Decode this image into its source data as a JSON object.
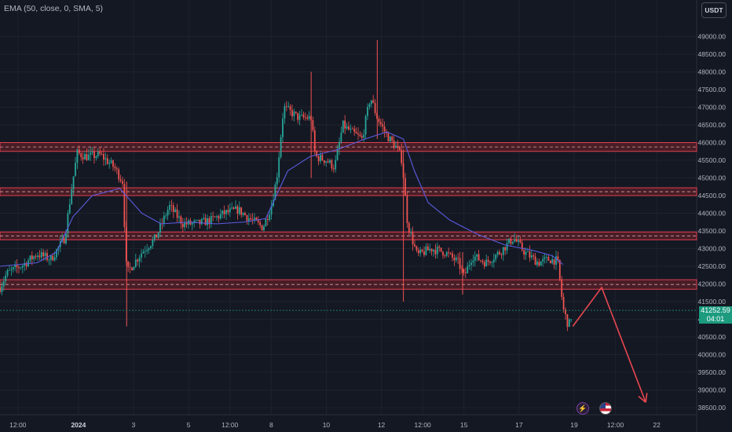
{
  "indicator_label": "EMA (50, close, 0, SMA, 5)",
  "currency": "USDT",
  "current_price": "41252.59",
  "countdown": "04:01",
  "colors": {
    "background": "#141823",
    "grid": "#1e222d",
    "up": "#26a69a",
    "down": "#ef5350",
    "ema": "#5b5ce0",
    "zone_fill": "#5a1f28",
    "zone_border": "#e04050",
    "arrow": "#e8474f",
    "badge": "#1c9b7f"
  },
  "icons": [
    "flash-icon",
    "us-flag-icon"
  ],
  "chart_data": {
    "type": "candlestick",
    "symbol_quote": "USDT",
    "indicator": "EMA (50, close, 0, SMA, 5)",
    "ylim": [
      38300,
      49500
    ],
    "y_ticks": [
      38500,
      39000,
      39500,
      40000,
      40500,
      41000,
      41500,
      42000,
      42500,
      43000,
      43500,
      44000,
      44500,
      45000,
      45500,
      46000,
      46500,
      47000,
      47500,
      48000,
      48500,
      49000
    ],
    "x_ticks": [
      {
        "label": "12:00",
        "pos": -2.2,
        "bold": false
      },
      {
        "label": "2024",
        "pos": 0,
        "bold": true
      },
      {
        "label": "3",
        "pos": 2,
        "bold": false
      },
      {
        "label": "5",
        "pos": 4,
        "bold": false
      },
      {
        "label": "12:00",
        "pos": 5.5,
        "bold": false
      },
      {
        "label": "8",
        "pos": 7,
        "bold": false
      },
      {
        "label": "10",
        "pos": 9,
        "bold": false
      },
      {
        "label": "12",
        "pos": 11,
        "bold": false
      },
      {
        "label": "12:00",
        "pos": 12.5,
        "bold": false
      },
      {
        "label": "15",
        "pos": 14,
        "bold": false
      },
      {
        "label": "17",
        "pos": 16,
        "bold": false
      },
      {
        "label": "19",
        "pos": 18,
        "bold": false
      },
      {
        "label": "12:00",
        "pos": 19.5,
        "bold": false
      },
      {
        "label": "22",
        "pos": 21,
        "bold": false
      }
    ],
    "x_range": [
      -2.85,
      22.45
    ],
    "zones": [
      {
        "low": 45750,
        "high": 46000
      },
      {
        "low": 44500,
        "high": 44720
      },
      {
        "low": 43250,
        "high": 43470
      },
      {
        "low": 41850,
        "high": 42120
      }
    ],
    "price_path": [
      [
        -2.85,
        41900
      ],
      [
        -2.6,
        42300
      ],
      [
        -2.0,
        42550
      ],
      [
        -1.5,
        42850
      ],
      [
        -1.0,
        42700
      ],
      [
        -0.5,
        43300
      ],
      [
        -0.25,
        44700
      ],
      [
        -0.05,
        45700
      ],
      [
        0.3,
        45600
      ],
      [
        0.8,
        45650
      ],
      [
        1.3,
        45300
      ],
      [
        1.6,
        44900
      ],
      [
        1.75,
        42300
      ],
      [
        2.3,
        42900
      ],
      [
        2.8,
        43300
      ],
      [
        3.3,
        44200
      ],
      [
        3.8,
        43700
      ],
      [
        4.3,
        43700
      ],
      [
        4.8,
        43800
      ],
      [
        5.3,
        44000
      ],
      [
        5.8,
        44100
      ],
      [
        6.3,
        43800
      ],
      [
        6.7,
        43600
      ],
      [
        7.0,
        44200
      ],
      [
        7.2,
        45000
      ],
      [
        7.45,
        47000
      ],
      [
        8.0,
        46700
      ],
      [
        8.45,
        46700
      ],
      [
        8.6,
        45600
      ],
      [
        9.0,
        45500
      ],
      [
        9.3,
        45300
      ],
      [
        9.6,
        46500
      ],
      [
        9.9,
        46300
      ],
      [
        10.3,
        46100
      ],
      [
        10.6,
        47300
      ],
      [
        10.85,
        46700
      ],
      [
        11.2,
        46200
      ],
      [
        11.6,
        45800
      ],
      [
        11.75,
        45500
      ],
      [
        11.95,
        43700
      ],
      [
        12.3,
        42800
      ],
      [
        12.8,
        43000
      ],
      [
        13.3,
        42900
      ],
      [
        13.8,
        42600
      ],
      [
        14.0,
        42200
      ],
      [
        14.3,
        42800
      ],
      [
        14.8,
        42600
      ],
      [
        15.3,
        42900
      ],
      [
        15.8,
        43300
      ],
      [
        16.2,
        42900
      ],
      [
        16.7,
        42600
      ],
      [
        17.1,
        42700
      ],
      [
        17.4,
        42650
      ],
      [
        17.6,
        41300
      ],
      [
        17.8,
        40800
      ],
      [
        17.95,
        41250
      ]
    ],
    "wicks": [
      {
        "x": 1.75,
        "low": 40800,
        "high": 44900
      },
      {
        "x": 10.85,
        "low": 46100,
        "high": 48900
      },
      {
        "x": 11.8,
        "low": 41500,
        "high": 45800
      },
      {
        "x": 8.45,
        "low": 45000,
        "high": 48000
      },
      {
        "x": 13.95,
        "low": 41700,
        "high": 42900
      }
    ],
    "ema_path": [
      [
        -2.85,
        42500
      ],
      [
        -1.5,
        42600
      ],
      [
        -0.8,
        42900
      ],
      [
        -0.2,
        43900
      ],
      [
        0.5,
        44500
      ],
      [
        1.5,
        44700
      ],
      [
        2.3,
        44000
      ],
      [
        3.0,
        43700
      ],
      [
        4.0,
        43750
      ],
      [
        5.0,
        43700
      ],
      [
        6.0,
        43750
      ],
      [
        6.8,
        43850
      ],
      [
        7.6,
        45200
      ],
      [
        8.4,
        45600
      ],
      [
        9.4,
        45800
      ],
      [
        10.4,
        46100
      ],
      [
        11.2,
        46300
      ],
      [
        11.8,
        46100
      ],
      [
        12.2,
        45200
      ],
      [
        12.7,
        44300
      ],
      [
        13.5,
        43800
      ],
      [
        14.5,
        43400
      ],
      [
        15.5,
        43100
      ],
      [
        16.5,
        42950
      ],
      [
        17.2,
        42800
      ],
      [
        17.6,
        42550
      ]
    ],
    "projection_arrow": [
      [
        17.95,
        40800
      ],
      [
        19.0,
        41900
      ],
      [
        20.6,
        38650
      ]
    ]
  }
}
